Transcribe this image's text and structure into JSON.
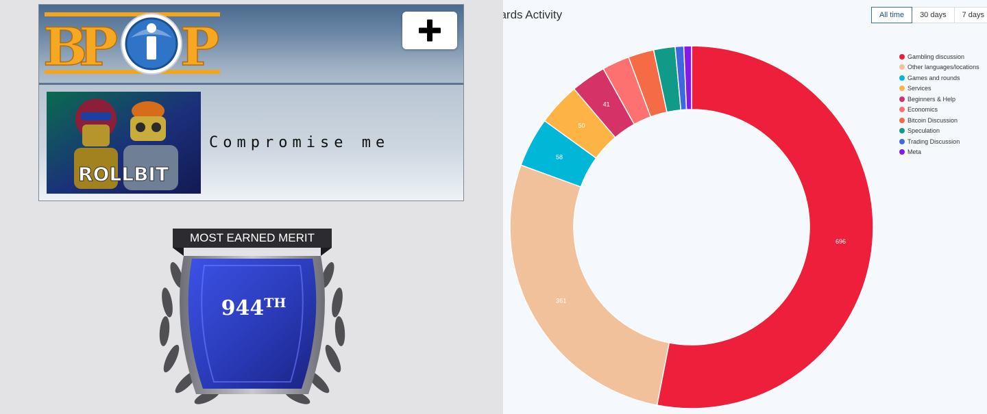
{
  "left_panel": {
    "logo_text": "BPIP",
    "plus_label": "+",
    "ad": {
      "banner_text": "ROLLBIT",
      "caption": "Compromise me"
    },
    "merit": {
      "label": "MOST EARNED MERIT",
      "rank_number": "944",
      "rank_suffix": "TH"
    }
  },
  "range_tabs": [
    {
      "label": "All time",
      "active": true
    },
    {
      "label": "30 days",
      "active": false
    },
    {
      "label": "7 days",
      "active": false
    }
  ],
  "chart_data": {
    "type": "pie",
    "title": "oards Activity",
    "variant": "donut",
    "legend_position": "top-right",
    "total_approx": 1312,
    "slices": [
      {
        "label": "Gambling discussion",
        "value": 696,
        "color": "#ee1f3a",
        "show_label": true
      },
      {
        "label": "Other languages/locations",
        "value": 361,
        "color": "#f1c19b",
        "show_label": true
      },
      {
        "label": "Games and rounds",
        "value": 58,
        "color": "#00b7d8",
        "show_label": true
      },
      {
        "label": "Services",
        "value": 50,
        "color": "#fdb444",
        "show_label": true
      },
      {
        "label": "Beginners & Help",
        "value": 41,
        "color": "#d53367",
        "show_label": true
      },
      {
        "label": "Economics",
        "value": 32,
        "color": "#fd7170",
        "show_label": false
      },
      {
        "label": "Bitcoin Discussion",
        "value": 30,
        "color": "#f56b46",
        "show_label": false
      },
      {
        "label": "Speculation",
        "value": 25,
        "color": "#129a88",
        "show_label": false
      },
      {
        "label": "Trading Discussion",
        "value": 10,
        "color": "#3f67e4",
        "show_label": false
      },
      {
        "label": "Meta",
        "value": 9,
        "color": "#8419e8",
        "show_label": false
      }
    ]
  }
}
